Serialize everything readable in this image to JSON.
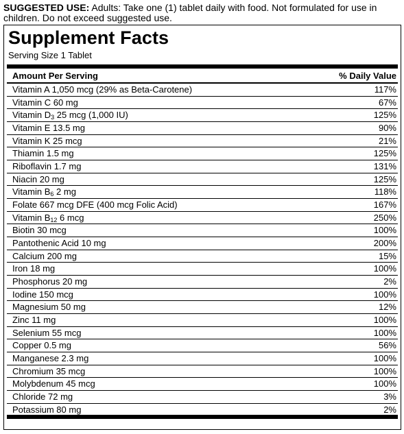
{
  "usage": {
    "lead": "SUGGESTED USE:",
    "text": " Adults: Take one (1) tablet daily with food. Not formulated for use in children. Do not exceed suggested use."
  },
  "facts": {
    "title": "Supplement Facts",
    "serving": "Serving Size 1 Tablet",
    "col_amount": "Amount Per Serving",
    "col_dv": "% Daily Value",
    "rows": [
      {
        "pre": "Vitamin A 1,050 mcg (29% as Beta-Carotene)",
        "sub": "",
        "post": "",
        "dv": "117%"
      },
      {
        "pre": "Vitamin C 60 mg",
        "sub": "",
        "post": "",
        "dv": "67%"
      },
      {
        "pre": "Vitamin D",
        "sub": "3",
        "post": " 25 mcg (1,000 IU)",
        "dv": "125%"
      },
      {
        "pre": "Vitamin E 13.5 mg",
        "sub": "",
        "post": "",
        "dv": "90%"
      },
      {
        "pre": "Vitamin K 25 mcg",
        "sub": "",
        "post": "",
        "dv": "21%"
      },
      {
        "pre": "Thiamin 1.5 mg",
        "sub": "",
        "post": "",
        "dv": "125%"
      },
      {
        "pre": "Riboflavin 1.7 mg",
        "sub": "",
        "post": "",
        "dv": "131%"
      },
      {
        "pre": "Niacin 20 mg",
        "sub": "",
        "post": "",
        "dv": "125%"
      },
      {
        "pre": "Vitamin B",
        "sub": "6",
        "post": " 2 mg",
        "dv": "118%"
      },
      {
        "pre": "Folate 667 mcg DFE (400 mcg Folic Acid)",
        "sub": "",
        "post": "",
        "dv": "167%"
      },
      {
        "pre": "Vitamin B",
        "sub": "12",
        "post": " 6 mcg",
        "dv": "250%"
      },
      {
        "pre": "Biotin 30 mcg",
        "sub": "",
        "post": "",
        "dv": "100%"
      },
      {
        "pre": "Pantothenic Acid 10 mg",
        "sub": "",
        "post": "",
        "dv": "200%"
      },
      {
        "pre": "Calcium 200 mg",
        "sub": "",
        "post": "",
        "dv": "15%"
      },
      {
        "pre": "Iron 18 mg",
        "sub": "",
        "post": "",
        "dv": "100%"
      },
      {
        "pre": "Phosphorus 20 mg",
        "sub": "",
        "post": "",
        "dv": "2%"
      },
      {
        "pre": "Iodine 150 mcg",
        "sub": "",
        "post": "",
        "dv": "100%"
      },
      {
        "pre": "Magnesium 50 mg",
        "sub": "",
        "post": "",
        "dv": "12%"
      },
      {
        "pre": "Zinc  11 mg",
        "sub": "",
        "post": "",
        "dv": "100%"
      },
      {
        "pre": "Selenium 55 mcg",
        "sub": "",
        "post": "",
        "dv": "100%"
      },
      {
        "pre": "Copper 0.5 mg",
        "sub": "",
        "post": "",
        "dv": "56%"
      },
      {
        "pre": "Manganese 2.3 mg",
        "sub": "",
        "post": "",
        "dv": "100%"
      },
      {
        "pre": "Chromium 35 mcg",
        "sub": "",
        "post": "",
        "dv": "100%"
      },
      {
        "pre": "Molybdenum 45 mcg",
        "sub": "",
        "post": "",
        "dv": "100%"
      },
      {
        "pre": "Chloride 72 mg",
        "sub": "",
        "post": "",
        "dv": "3%"
      },
      {
        "pre": "Potassium 80 mg",
        "sub": "",
        "post": "",
        "dv": "2%"
      }
    ]
  }
}
